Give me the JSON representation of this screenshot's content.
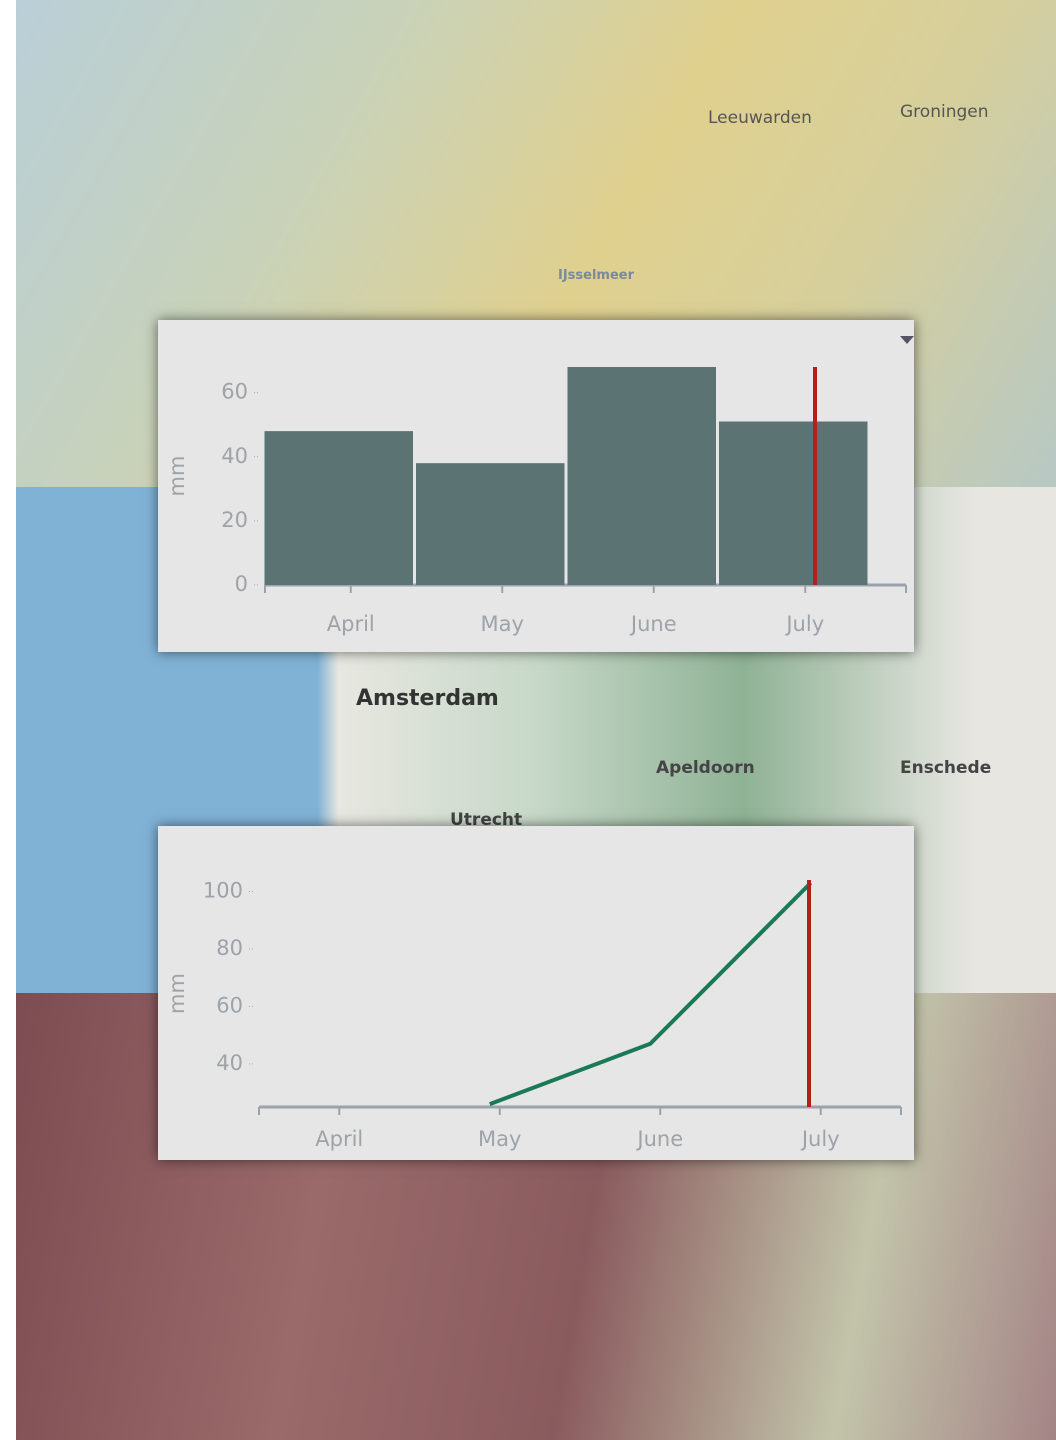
{
  "chart_data": [
    {
      "type": "bar",
      "y_label": "mm",
      "categories": [
        "April",
        "May",
        "June",
        "July"
      ],
      "values": [
        48,
        38,
        68,
        51
      ],
      "color": "#5b7372",
      "ylim": [
        0,
        68
      ],
      "yticks": [
        0,
        20,
        40,
        60
      ]
    },
    {
      "type": "line",
      "y_label": "mm",
      "categories": [
        "April",
        "May",
        "June",
        "July"
      ],
      "values": [
        null,
        26,
        47,
        103
      ],
      "color": "#1a7a55",
      "ylim": [
        25,
        104
      ],
      "yticks": [
        40,
        60,
        80,
        100
      ]
    }
  ],
  "map_labels": [
    "Leeuwarden",
    "Groningen",
    "IJsselmeer",
    "Amsterdam",
    "Utrecht",
    "Apeldoorn",
    "Enschede"
  ]
}
